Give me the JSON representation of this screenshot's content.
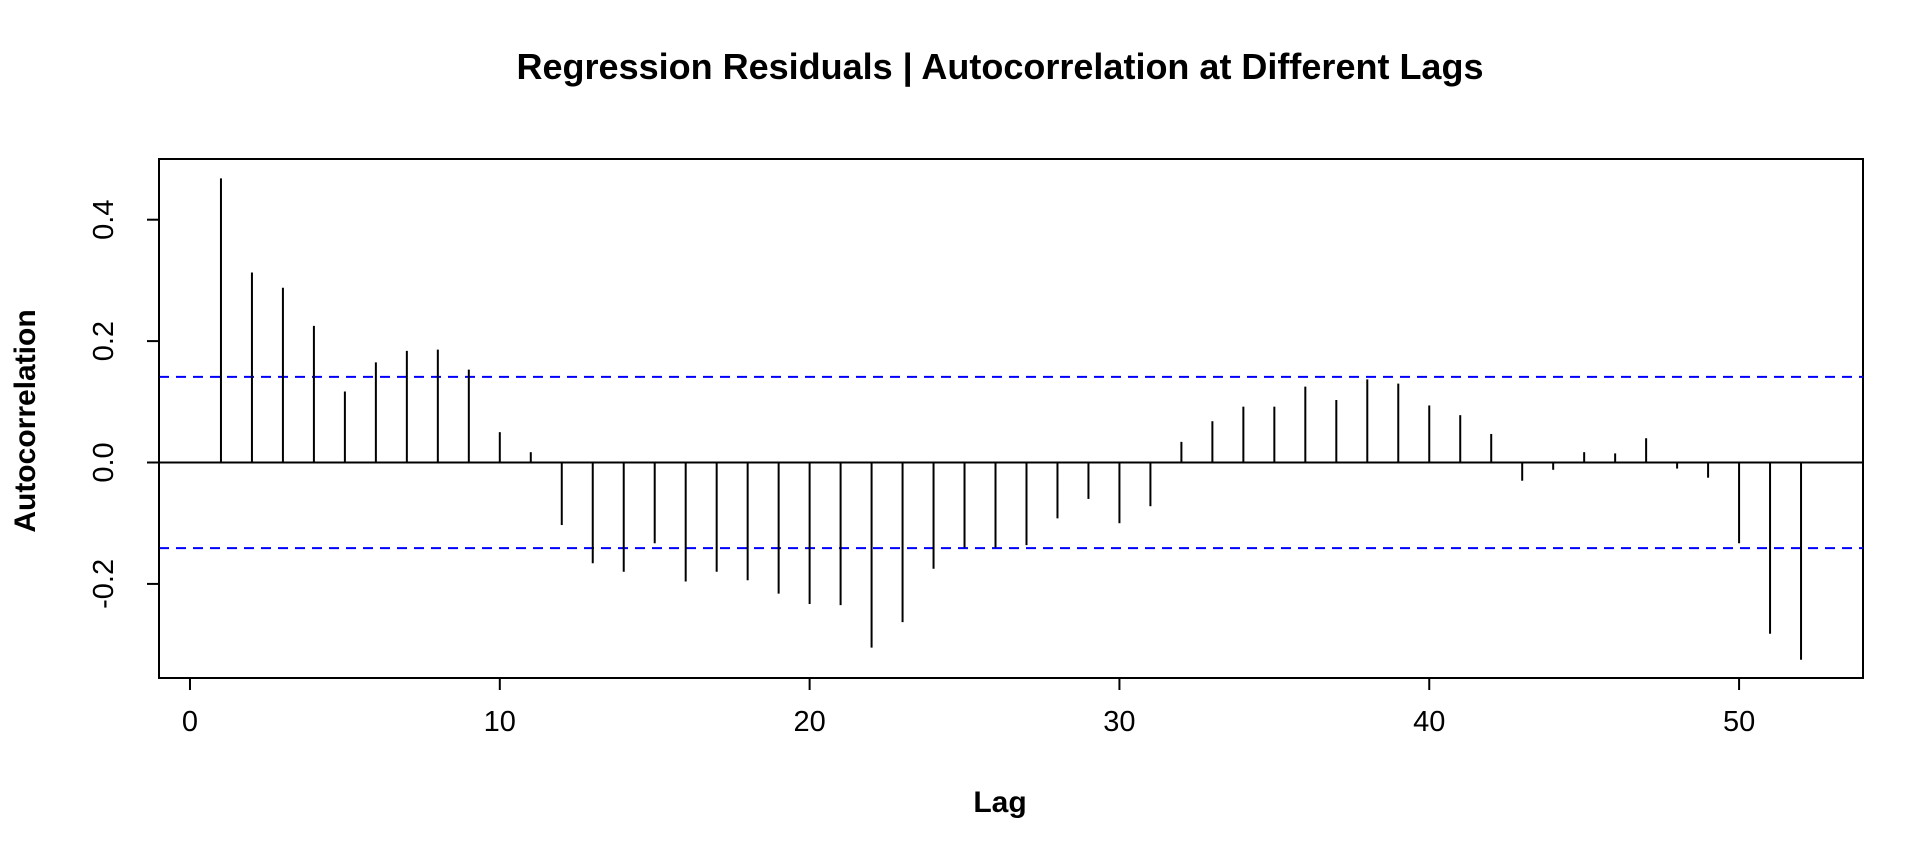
{
  "chart_data": {
    "type": "bar",
    "title": "Regression Residuals  |  Autocorrelation at Different Lags",
    "xlabel": "Lag",
    "ylabel": "Autocorrelation",
    "xlim": [
      -1,
      54
    ],
    "ylim": [
      -0.355,
      0.5
    ],
    "x_ticks": [
      0,
      10,
      20,
      30,
      40,
      50
    ],
    "x_tick_labels": [
      "0",
      "10",
      "20",
      "30",
      "40",
      "50"
    ],
    "y_ticks": [
      -0.2,
      0.0,
      0.2,
      0.4
    ],
    "y_tick_labels": [
      "-0.2",
      "0.0",
      "0.2",
      "0.4"
    ],
    "confidence_bound": 0.141,
    "confidence_color": "#0000ff",
    "bar_color": "#000000",
    "lags": [
      1,
      2,
      3,
      4,
      5,
      6,
      7,
      8,
      9,
      10,
      11,
      12,
      13,
      14,
      15,
      16,
      17,
      18,
      19,
      20,
      21,
      22,
      23,
      24,
      25,
      26,
      27,
      28,
      29,
      30,
      31,
      32,
      33,
      34,
      35,
      36,
      37,
      38,
      39,
      40,
      41,
      42,
      43,
      44,
      45,
      46,
      47,
      48,
      49,
      50,
      51,
      52
    ],
    "values": [
      0.468,
      0.313,
      0.288,
      0.225,
      0.117,
      0.165,
      0.184,
      0.186,
      0.153,
      0.05,
      0.017,
      -0.103,
      -0.166,
      -0.18,
      -0.133,
      -0.196,
      -0.18,
      -0.194,
      -0.216,
      -0.233,
      -0.235,
      -0.305,
      -0.263,
      -0.175,
      -0.14,
      -0.14,
      -0.136,
      -0.092,
      -0.06,
      -0.1,
      -0.072,
      0.034,
      0.068,
      0.092,
      0.092,
      0.125,
      0.103,
      0.137,
      0.13,
      0.094,
      0.078,
      0.047,
      -0.03,
      -0.012,
      0.017,
      0.015,
      0.04,
      -0.01,
      -0.025,
      -0.133,
      -0.282,
      -0.325
    ]
  }
}
